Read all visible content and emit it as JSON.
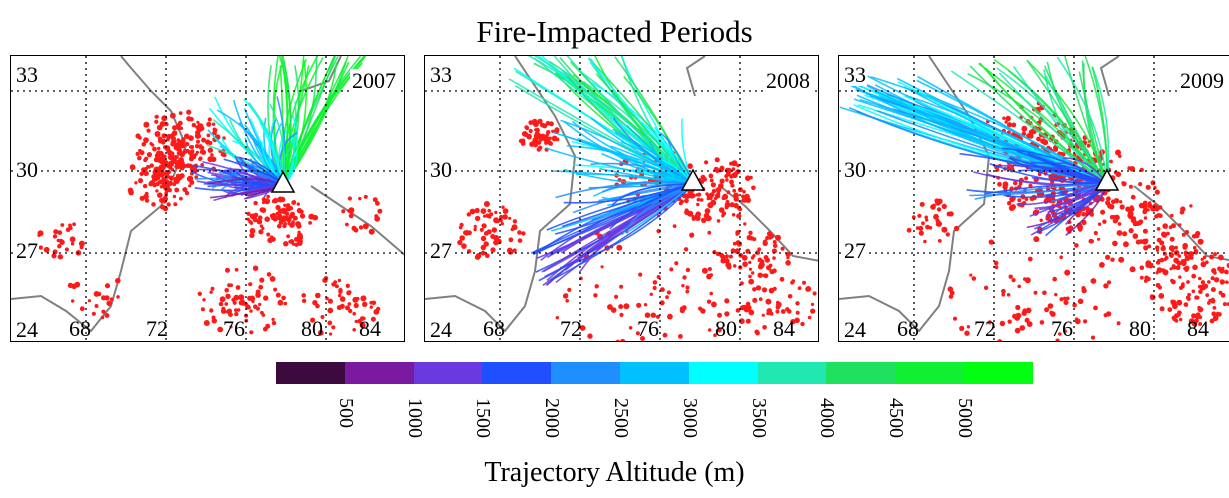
{
  "title": "Fire-Impacted Periods",
  "axis_title": "Trajectory Altitude (m)",
  "lat_labels": [
    "33",
    "30",
    "27",
    "24"
  ],
  "colors": {
    "fire": "#ff1a1a",
    "boundary": "#808080",
    "grid": "#000000",
    "station_marker": "#ffffff"
  },
  "station_icon": "triangle-marker-icon",
  "panels": [
    {
      "year": "2007",
      "lon_labels": [
        "68",
        "72",
        "76",
        "80",
        "84"
      ]
    },
    {
      "year": "2008",
      "lon_labels": [
        "68",
        "72",
        "76",
        "80",
        "84"
      ]
    },
    {
      "year": "2009",
      "lon_labels": [
        "68",
        "72",
        "76",
        "80",
        "84"
      ]
    }
  ],
  "colorbar": {
    "colors": [
      "#3c0a3c",
      "#7a1aa0",
      "#6a3ae0",
      "#1f4fff",
      "#1f8fff",
      "#00c0ff",
      "#00ffff",
      "#20e8b0",
      "#20e060",
      "#10f030",
      "#00ff10"
    ],
    "labels": [
      "500",
      "1000",
      "1500",
      "2000",
      "2500",
      "3000",
      "3500",
      "4000",
      "4500",
      "5000"
    ]
  }
}
